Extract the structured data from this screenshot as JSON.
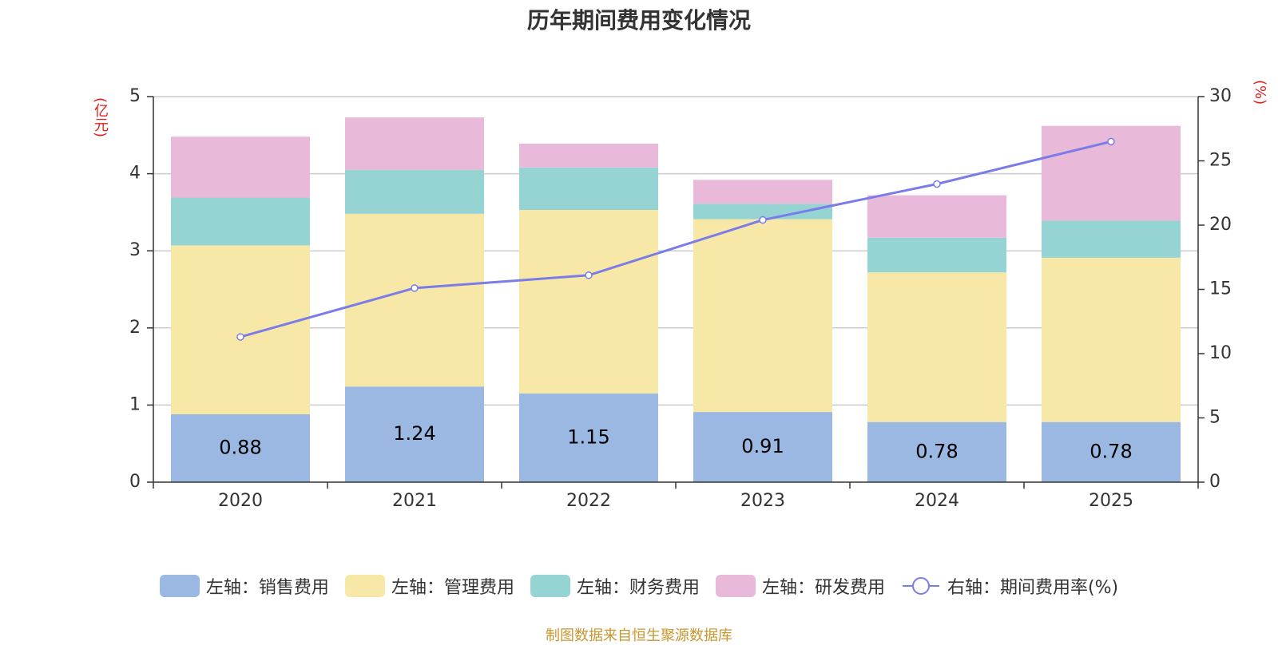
{
  "title": "历年期间费用变化情况",
  "source_note": "制图数据来自恒生聚源数据库",
  "colors": {
    "sales": "#9bb8e2",
    "admin": "#f7e8a8",
    "finance": "#96d4d4",
    "rd": "#e8b9d9",
    "line": "#7a7ce8",
    "unit_label": "#e02020",
    "source": "#c8962e",
    "axis_text": "#333333",
    "grid": "#cccccc"
  },
  "chart_data": {
    "type": "bar",
    "stacked": true,
    "title": "历年期间费用变化情况",
    "categories": [
      "2020",
      "2021",
      "2022",
      "2023",
      "2024",
      "2025"
    ],
    "left_axis": {
      "label": "(亿元)",
      "ylim": [
        0,
        5
      ],
      "ticks": [
        "0",
        "1",
        "2",
        "3",
        "4",
        "5"
      ]
    },
    "right_axis": {
      "label": "(%)",
      "ylim": [
        0,
        30
      ],
      "ticks": [
        "0",
        "5",
        "10",
        "15",
        "20",
        "25",
        "30"
      ]
    },
    "series": [
      {
        "key": "sales",
        "name": "左轴：销售费用",
        "axis": "left",
        "type": "bar",
        "values": [
          0.88,
          1.24,
          1.15,
          0.91,
          0.78,
          0.78
        ],
        "labels": [
          "0.88",
          "1.24",
          "1.15",
          "0.91",
          "0.78",
          "0.78"
        ]
      },
      {
        "key": "admin",
        "name": "左轴：管理费用",
        "axis": "left",
        "type": "bar",
        "values": [
          2.19,
          2.24,
          2.38,
          2.5,
          1.94,
          2.13
        ]
      },
      {
        "key": "finance",
        "name": "左轴：财务费用",
        "axis": "left",
        "type": "bar",
        "values": [
          0.62,
          0.57,
          0.55,
          0.2,
          0.45,
          0.48
        ]
      },
      {
        "key": "rd",
        "name": "左轴：研发费用",
        "axis": "left",
        "type": "bar",
        "values": [
          0.79,
          0.68,
          0.31,
          0.31,
          0.55,
          1.23
        ]
      },
      {
        "key": "line",
        "name": "右轴：期间费用率(%)",
        "axis": "right",
        "type": "line",
        "values": [
          11.3,
          15.1,
          16.1,
          20.4,
          23.2,
          26.5
        ]
      }
    ],
    "legend_position": "bottom"
  }
}
